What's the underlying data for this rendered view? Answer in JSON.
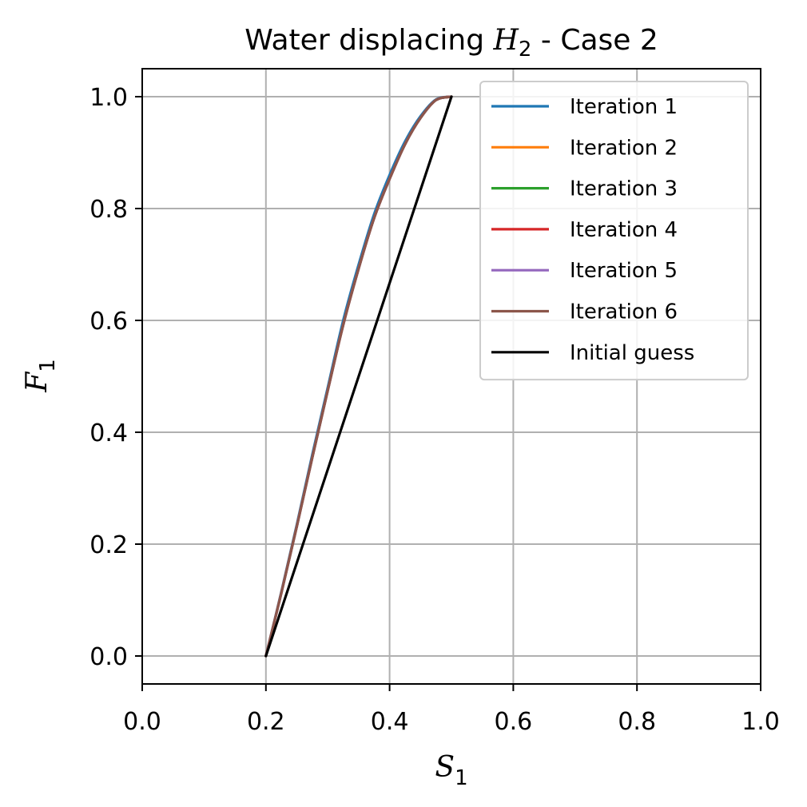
{
  "chart_data": {
    "type": "line",
    "title": "Water displacing H₂ -  Case 2",
    "title_parts": {
      "pre": "Water displacing ",
      "var": "H",
      "sub": "2",
      "post": " -  Case 2"
    },
    "xlabel": {
      "var": "S",
      "sub": "1"
    },
    "ylabel": {
      "var": "F",
      "sub": "1"
    },
    "xlim": [
      0.0,
      1.0
    ],
    "ylim": [
      -0.05,
      1.05
    ],
    "xticks": [
      "0.0",
      "0.2",
      "0.4",
      "0.6",
      "0.8",
      "1.0"
    ],
    "yticks": [
      "0.0",
      "0.2",
      "0.4",
      "0.6",
      "0.8",
      "1.0"
    ],
    "grid": true,
    "legend_position": "top-right",
    "series": [
      {
        "name": "Iteration 1",
        "color": "#1f77b4",
        "x": [
          0.2,
          0.225,
          0.25,
          0.275,
          0.3,
          0.325,
          0.35,
          0.375,
          0.4,
          0.425,
          0.45,
          0.475,
          0.5
        ],
        "y": [
          0.0,
          0.115,
          0.235,
          0.36,
          0.48,
          0.6,
          0.7,
          0.79,
          0.86,
          0.92,
          0.965,
          0.995,
          1.0
        ]
      },
      {
        "name": "Iteration 2",
        "color": "#ff7f0e",
        "x": [
          0.2,
          0.225,
          0.25,
          0.275,
          0.3,
          0.325,
          0.35,
          0.375,
          0.4,
          0.425,
          0.45,
          0.475,
          0.5
        ],
        "y": [
          0.0,
          0.113,
          0.232,
          0.355,
          0.475,
          0.592,
          0.693,
          0.783,
          0.853,
          0.915,
          0.962,
          0.994,
          1.0
        ]
      },
      {
        "name": "Iteration 3",
        "color": "#2ca02c",
        "x": [
          0.2,
          0.225,
          0.25,
          0.275,
          0.3,
          0.325,
          0.35,
          0.375,
          0.4,
          0.425,
          0.45,
          0.475,
          0.5
        ],
        "y": [
          0.0,
          0.113,
          0.232,
          0.355,
          0.475,
          0.592,
          0.693,
          0.783,
          0.853,
          0.915,
          0.962,
          0.994,
          1.0
        ]
      },
      {
        "name": "Iteration 4",
        "color": "#d62728",
        "x": [
          0.2,
          0.225,
          0.25,
          0.275,
          0.3,
          0.325,
          0.35,
          0.375,
          0.4,
          0.425,
          0.45,
          0.475,
          0.5
        ],
        "y": [
          0.0,
          0.113,
          0.232,
          0.355,
          0.475,
          0.592,
          0.693,
          0.783,
          0.853,
          0.915,
          0.962,
          0.994,
          1.0
        ]
      },
      {
        "name": "Iteration 5",
        "color": "#9467bd",
        "x": [
          0.2,
          0.225,
          0.25,
          0.275,
          0.3,
          0.325,
          0.35,
          0.375,
          0.4,
          0.425,
          0.45,
          0.475,
          0.5
        ],
        "y": [
          0.0,
          0.113,
          0.232,
          0.355,
          0.475,
          0.592,
          0.693,
          0.783,
          0.853,
          0.915,
          0.962,
          0.994,
          1.0
        ]
      },
      {
        "name": "Iteration 6",
        "color": "#8c564b",
        "x": [
          0.2,
          0.225,
          0.25,
          0.275,
          0.3,
          0.325,
          0.35,
          0.375,
          0.4,
          0.425,
          0.45,
          0.475,
          0.5
        ],
        "y": [
          0.0,
          0.113,
          0.232,
          0.355,
          0.475,
          0.592,
          0.693,
          0.783,
          0.853,
          0.915,
          0.962,
          0.994,
          1.0
        ]
      },
      {
        "name": "Initial guess",
        "color": "#000000",
        "x": [
          0.2,
          0.5
        ],
        "y": [
          0.0,
          1.0
        ]
      }
    ]
  }
}
